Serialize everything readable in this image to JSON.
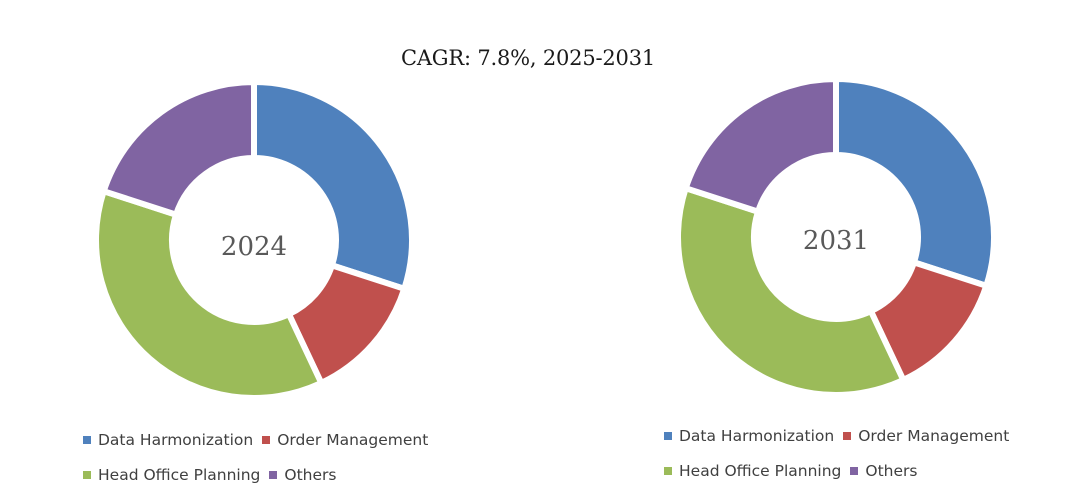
{
  "title": "CAGR:   7.8%, 2025-2031",
  "colors": {
    "Data Harmonization": "#4f81bd",
    "Order Management": "#c0504d",
    "Head Office Planning": "#9bbb59",
    "Others": "#8064a2"
  },
  "chart_data": [
    {
      "type": "pie",
      "variant": "donut",
      "center_label": "2024",
      "categories": [
        "Data Harmonization",
        "Order Management",
        "Head Office Planning",
        "Others"
      ],
      "values": [
        30,
        13,
        37,
        20
      ],
      "unit": "%",
      "legend": [
        "Data Harmonization",
        "Order Management",
        "Head Office Planning",
        "Others"
      ]
    },
    {
      "type": "pie",
      "variant": "donut",
      "center_label": "2031",
      "categories": [
        "Data Harmonization",
        "Order Management",
        "Head Office Planning",
        "Others"
      ],
      "values": [
        30,
        13,
        37,
        20
      ],
      "unit": "%",
      "legend": [
        "Data Harmonization",
        "Order Management",
        "Head Office Planning",
        "Others"
      ]
    }
  ]
}
